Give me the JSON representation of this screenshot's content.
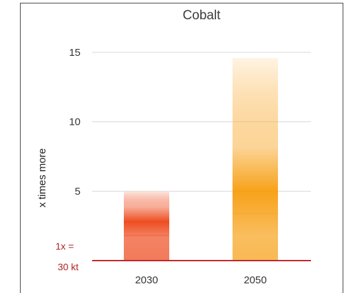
{
  "chart_data": {
    "type": "bar",
    "title": "Cobalt",
    "ylabel": "x times more",
    "xlabel": "",
    "categories": [
      "2030",
      "2050"
    ],
    "ylim": [
      0,
      15
    ],
    "yticks": [
      5,
      10,
      15
    ],
    "baseline_label": [
      "1x =",
      "30 kt"
    ],
    "ranges": [
      {
        "category": "2030",
        "min": 0,
        "max": 5.0,
        "central": 2.8,
        "inner": 1.8,
        "color_light": "#fbe3da",
        "color_dark": "#ee4e22"
      },
      {
        "category": "2050",
        "min": 0,
        "max": 14.6,
        "central": 5.0,
        "inner": 3.4,
        "color_light": "#fff1de",
        "color_dark": "#f7a21a"
      }
    ],
    "grid": true,
    "baseline_color": "#c0282d",
    "gridline_color": "#d8d8d8"
  }
}
